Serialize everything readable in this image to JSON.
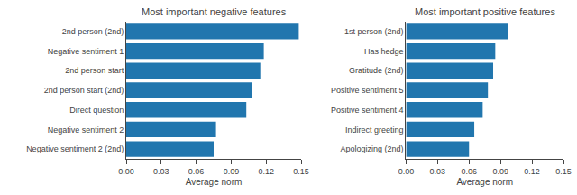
{
  "chart_data": [
    {
      "type": "bar",
      "orientation": "horizontal",
      "title": "Most important negative features",
      "categories": [
        "Negative sentiment 2 (2nd)",
        "Negative sentiment 2",
        "Direct question",
        "2nd person start (2nd)",
        "2nd person start",
        "Negative sentiment 1",
        "2nd person (2nd)"
      ],
      "values": [
        0.075,
        0.077,
        0.103,
        0.108,
        0.115,
        0.118,
        0.148
      ],
      "color": "#2176ae",
      "xlabel": "Average norm",
      "xlim": [
        0,
        0.15
      ],
      "xticks": [
        {
          "value": 0,
          "label": "0.00"
        },
        0.03,
        0.06,
        0.09,
        0.12,
        0.15
      ],
      "grid": false
    },
    {
      "type": "bar",
      "orientation": "horizontal",
      "title": "Most important positive features",
      "categories": [
        "Apologizing (2nd)",
        "Indirect greeting",
        "Positive sentiment 4",
        "Positive sentiment 5",
        "Gratitude (2nd)",
        "Has hedge",
        "1st person (2nd)"
      ],
      "values": [
        0.06,
        0.065,
        0.073,
        0.078,
        0.083,
        0.085,
        0.097
      ],
      "color": "#2176ae",
      "xlabel": "Average norm",
      "xlim": [
        0,
        0.15
      ],
      "xticks": [
        {
          "value": 0,
          "label": "0.00"
        },
        0.03,
        0.06,
        0.09,
        0.12,
        0.15
      ],
      "grid": false
    }
  ]
}
